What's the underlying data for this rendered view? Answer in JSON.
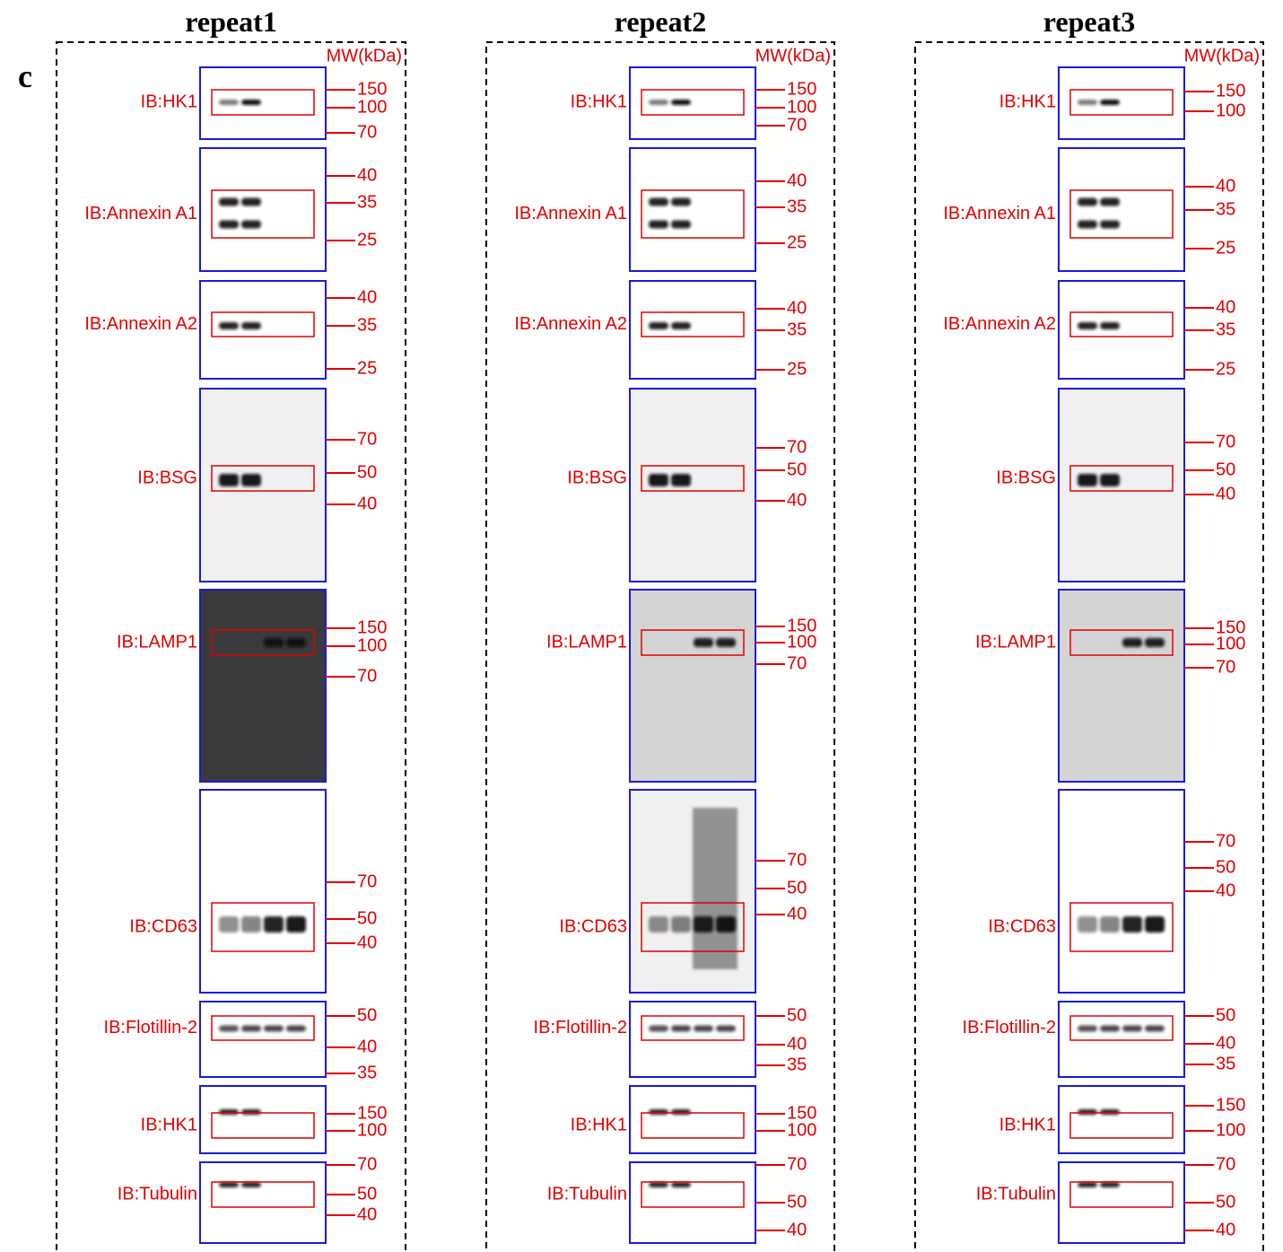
{
  "panel_label": "c",
  "repeats": [
    {
      "title": "repeat1",
      "mw_unit": "MW(kDa)",
      "blots": [
        {
          "label": "IB:HK1",
          "markers": [
            150,
            100,
            70
          ]
        },
        {
          "label": "IB:Annexin A1",
          "markers": [
            40,
            35,
            25
          ]
        },
        {
          "label": "IB:Annexin A2",
          "markers": [
            40,
            35,
            25
          ]
        },
        {
          "label": "IB:BSG",
          "markers": [
            70,
            50,
            40
          ]
        },
        {
          "label": "IB:LAMP1",
          "markers": [
            150,
            100,
            70
          ]
        },
        {
          "label": "IB:CD63",
          "markers": [
            70,
            50,
            40
          ]
        },
        {
          "label": "IB:Flotillin-2",
          "markers": [
            50,
            40,
            35
          ]
        },
        {
          "label": "IB:HK1",
          "markers": [
            150,
            100
          ]
        },
        {
          "label": "IB:Tubulin",
          "markers": [
            70,
            50,
            40
          ]
        }
      ]
    },
    {
      "title": "repeat2",
      "mw_unit": "MW(kDa)",
      "blots": [
        {
          "label": "IB:HK1",
          "markers": [
            150,
            100,
            70
          ]
        },
        {
          "label": "IB:Annexin A1",
          "markers": [
            40,
            35,
            25
          ]
        },
        {
          "label": "IB:Annexin A2",
          "markers": [
            40,
            35,
            25
          ]
        },
        {
          "label": "IB:BSG",
          "markers": [
            70,
            50,
            40
          ]
        },
        {
          "label": "IB:LAMP1",
          "markers": [
            150,
            100,
            70
          ]
        },
        {
          "label": "IB:CD63",
          "markers": [
            70,
            50,
            40
          ]
        },
        {
          "label": "IB:Flotillin-2",
          "markers": [
            50,
            40,
            35
          ]
        },
        {
          "label": "IB:HK1",
          "markers": [
            150,
            100
          ]
        },
        {
          "label": "IB:Tubulin",
          "markers": [
            70,
            50,
            40
          ]
        }
      ]
    },
    {
      "title": "repeat3",
      "mw_unit": "MW(kDa)",
      "blots": [
        {
          "label": "IB:HK1",
          "markers": [
            150,
            100
          ]
        },
        {
          "label": "IB:Annexin A1",
          "markers": [
            40,
            35,
            25
          ]
        },
        {
          "label": "IB:Annexin A2",
          "markers": [
            40,
            35,
            25
          ]
        },
        {
          "label": "IB:BSG",
          "markers": [
            70,
            50,
            40
          ]
        },
        {
          "label": "IB:LAMP1",
          "markers": [
            150,
            100,
            70
          ]
        },
        {
          "label": "IB:CD63",
          "markers": [
            70,
            50,
            40
          ]
        },
        {
          "label": "IB:Flotillin-2",
          "markers": [
            50,
            40,
            35
          ]
        },
        {
          "label": "IB:HK1",
          "markers": [
            150,
            100
          ]
        },
        {
          "label": "IB:Tubulin",
          "markers": [
            70,
            50,
            40
          ]
        }
      ]
    }
  ]
}
